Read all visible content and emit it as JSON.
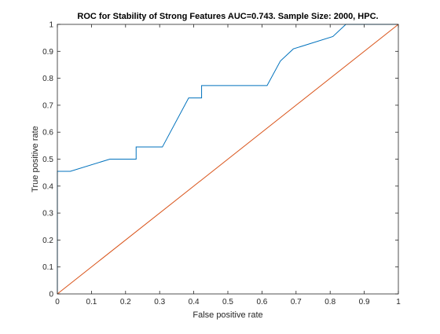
{
  "chart_data": {
    "type": "line",
    "title": "ROC for Stability of Strong Features AUC=0.743. Sample Size: 2000, HPC.",
    "xlabel": "False positive rate",
    "ylabel": "True positive rate",
    "xlim": [
      0,
      1
    ],
    "ylim": [
      0,
      1
    ],
    "xticks": [
      0,
      0.1,
      0.2,
      0.3,
      0.4,
      0.5,
      0.6,
      0.7,
      0.8,
      0.9,
      1
    ],
    "yticks": [
      0,
      0.1,
      0.2,
      0.3,
      0.4,
      0.5,
      0.6,
      0.7,
      0.8,
      0.9,
      1
    ],
    "xtick_labels": [
      "0",
      "0.1",
      "0.2",
      "0.3",
      "0.4",
      "0.5",
      "0.6",
      "0.7",
      "0.8",
      "0.9",
      "1"
    ],
    "ytick_labels": [
      "0",
      "0.1",
      "0.2",
      "0.3",
      "0.4",
      "0.5",
      "0.6",
      "0.7",
      "0.8",
      "0.9",
      "1"
    ],
    "grid": false,
    "series": [
      {
        "color": "#0072BD",
        "x": [
          0,
          0,
          0.038,
          0.154,
          0.231,
          0.231,
          0.308,
          0.385,
          0.423,
          0.423,
          0.615,
          0.654,
          0.692,
          0.808,
          0.846,
          1.0
        ],
        "y": [
          0,
          0.455,
          0.455,
          0.5,
          0.5,
          0.545,
          0.545,
          0.727,
          0.727,
          0.773,
          0.773,
          0.864,
          0.909,
          0.955,
          1.0,
          1.0
        ]
      },
      {
        "color": "#D95319",
        "x": [
          0,
          1
        ],
        "y": [
          0,
          1
        ]
      }
    ]
  }
}
